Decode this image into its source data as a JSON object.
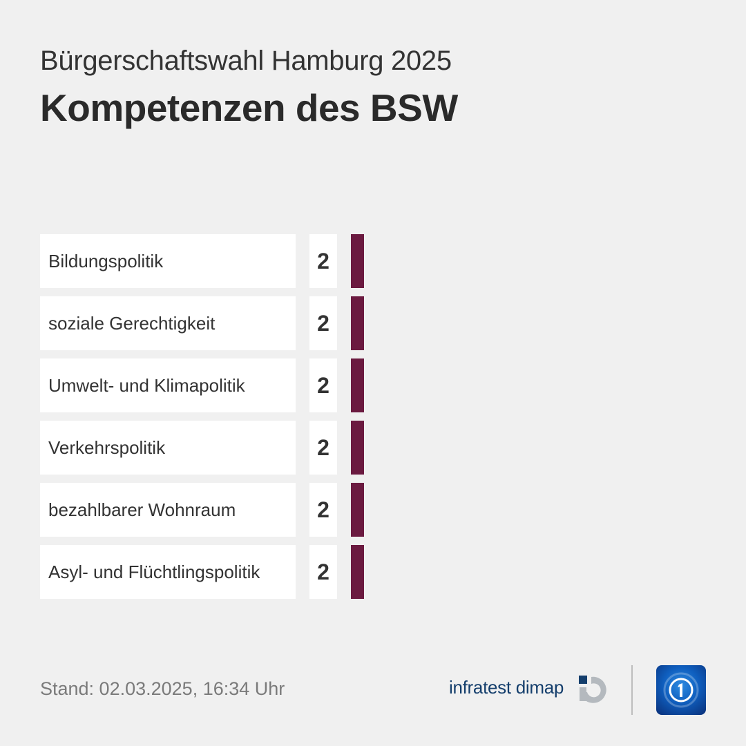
{
  "header": {
    "subtitle": "Bürgerschaftswahl Hamburg 2025",
    "title": "Kompetenzen des BSW"
  },
  "rows": [
    {
      "label": "Bildungspolitik",
      "value": "2"
    },
    {
      "label": "soziale Gerechtigkeit",
      "value": "2"
    },
    {
      "label": "Umwelt- und Klimapolitik",
      "value": "2"
    },
    {
      "label": "Verkehrspolitik",
      "value": "2"
    },
    {
      "label": "bezahlbarer Wohnraum",
      "value": "2"
    },
    {
      "label": "Asyl- und Flüchtlingspolitik",
      "value": "2"
    }
  ],
  "colors": {
    "bar": "#6b1a40",
    "background": "#f0f0f0"
  },
  "footer": {
    "stand": "Stand:  02.03.2025, 16:34 Uhr",
    "brand": "infratest dimap",
    "brand_icon": "infratest-dimap-logo",
    "broadcaster_icon": "tagesschau-logo"
  },
  "chart_data": {
    "type": "bar",
    "orientation": "horizontal",
    "title": "Kompetenzen des BSW",
    "subtitle": "Bürgerschaftswahl Hamburg 2025",
    "categories": [
      "Bildungspolitik",
      "soziale Gerechtigkeit",
      "Umwelt- und Klimapolitik",
      "Verkehrspolitik",
      "bezahlbarer Wohnraum",
      "Asyl- und Flüchtlingspolitik"
    ],
    "values": [
      2,
      2,
      2,
      2,
      2,
      2
    ],
    "unit": "%",
    "xlabel": "",
    "ylabel": "",
    "grid": false,
    "legend": "none",
    "bar_color": "#6b1a40",
    "annotations": [
      "Stand: 02.03.2025, 16:34 Uhr"
    ]
  }
}
